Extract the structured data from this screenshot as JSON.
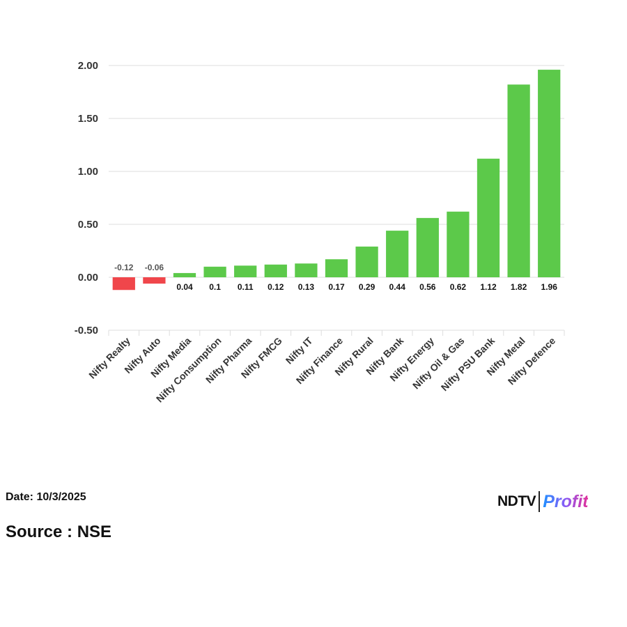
{
  "chart_data": {
    "type": "bar",
    "categories": [
      "Nifty Realty",
      "Nifty Auto",
      "Nifty Media",
      "Nifty Consumption",
      "Nifty Pharma",
      "Nifty FMCG",
      "Nifty IT",
      "Nifty Finance",
      "Nifty Rural",
      "Nifty Bank",
      "Nifty Energy",
      "Nifty Oil & Gas",
      "Nifty PSU Bank",
      "Nifty Metal",
      "Nifty Defence"
    ],
    "values": [
      -0.12,
      -0.06,
      0.04,
      0.1,
      0.11,
      0.12,
      0.13,
      0.17,
      0.29,
      0.44,
      0.56,
      0.62,
      1.12,
      1.82,
      1.96
    ],
    "data_labels": [
      "-0.12",
      "-0.06",
      "0.04",
      "0.1",
      "0.11",
      "0.12",
      "0.13",
      "0.17",
      "0.29",
      "0.44",
      "0.56",
      "0.62",
      "1.12",
      "1.82",
      "1.96"
    ],
    "y_ticks": [
      "-0.50",
      "0.00",
      "0.50",
      "1.00",
      "1.50",
      "2.00"
    ],
    "y_tick_values": [
      -0.5,
      0,
      0.5,
      1,
      1.5,
      2
    ],
    "ylim": [
      -0.5,
      2.0
    ],
    "grid": true,
    "colors": {
      "positive": "#5cc94a",
      "negative": "#f0464b",
      "positive_label": "#111111",
      "negative_label": "#555555"
    }
  },
  "footer": {
    "date": "Date: 10/3/2025",
    "source": "Source : NSE"
  },
  "logo": {
    "brand_left": "ND",
    "brand_mid": "T",
    "brand_right": "V",
    "brand_product": "Profit"
  }
}
